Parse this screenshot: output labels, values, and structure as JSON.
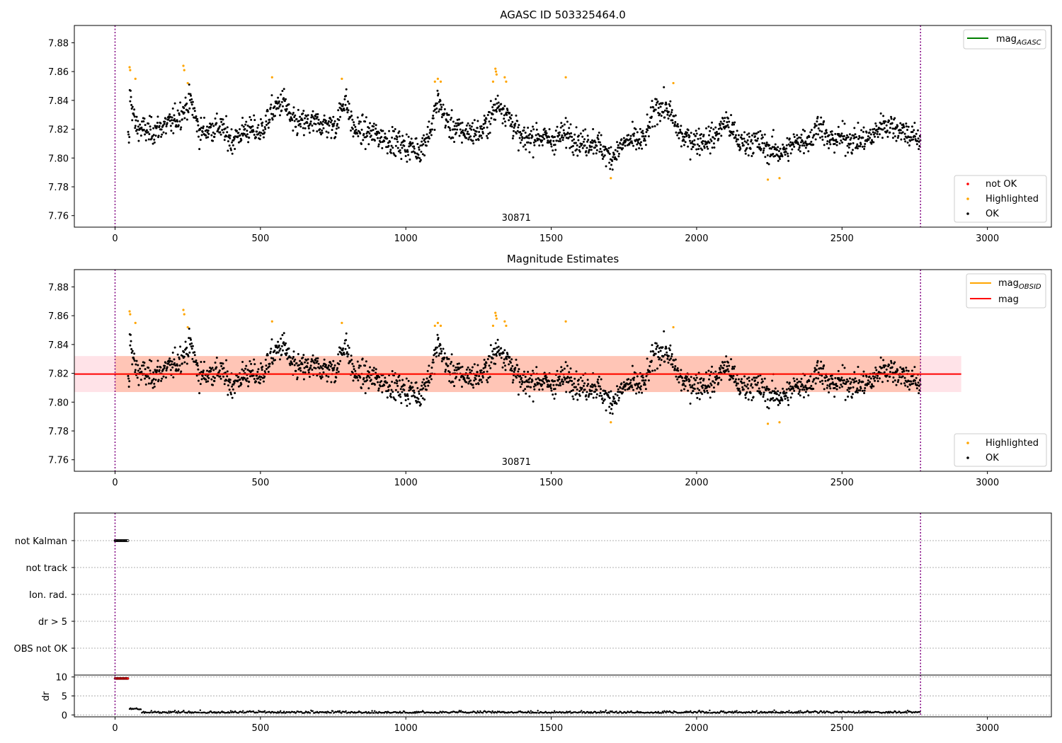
{
  "colors": {
    "ok": "#000000",
    "highlighted": "#ffa500",
    "not_ok": "#ff0000",
    "mag_agasc": "#008000",
    "mag_obsid": "#ffa500",
    "mag": "#ff0000",
    "band_obsid": "#ffa07a",
    "band_mag": "#ffc0cb",
    "obs_boundary": "#800080",
    "grid": "#b0b0b0"
  },
  "chart_data": [
    {
      "type": "scatter",
      "title": "AGASC ID 503325464.0",
      "xlim": [
        -140,
        3220
      ],
      "ylim": [
        7.752,
        7.892
      ],
      "x_ticks": [
        0,
        500,
        1000,
        1500,
        2000,
        2500,
        3000
      ],
      "y_ticks": [
        7.76,
        7.78,
        7.8,
        7.82,
        7.84,
        7.86,
        7.88
      ],
      "obs_boundaries": [
        0,
        2770
      ],
      "obs_label": {
        "text": "30871",
        "x": 1380
      },
      "mean": 7.819,
      "legend_lines": [
        {
          "label": "mag",
          "sub": "AGASC",
          "color": "#008000"
        }
      ],
      "legend_points": [
        {
          "label": "not OK",
          "color": "#ff0000"
        },
        {
          "label": "Highlighted",
          "color": "#ffa500"
        },
        {
          "label": "OK",
          "color": "#000000"
        }
      ],
      "highlighted_points": [
        [
          50,
          7.863
        ],
        [
          52,
          7.861
        ],
        [
          70,
          7.855
        ],
        [
          235,
          7.864
        ],
        [
          238,
          7.861
        ],
        [
          250,
          7.852
        ],
        [
          540,
          7.856
        ],
        [
          780,
          7.855
        ],
        [
          1100,
          7.853
        ],
        [
          1110,
          7.855
        ],
        [
          1120,
          7.853
        ],
        [
          1300,
          7.853
        ],
        [
          1308,
          7.862
        ],
        [
          1310,
          7.86
        ],
        [
          1312,
          7.858
        ],
        [
          1340,
          7.856
        ],
        [
          1345,
          7.853
        ],
        [
          1550,
          7.856
        ],
        [
          1705,
          7.786
        ],
        [
          1920,
          7.852
        ],
        [
          2245,
          7.785
        ],
        [
          2285,
          7.786
        ]
      ]
    },
    {
      "type": "scatter",
      "title": "Magnitude Estimates",
      "xlim": [
        -140,
        3220
      ],
      "ylim": [
        7.752,
        7.892
      ],
      "x_ticks": [
        0,
        500,
        1000,
        1500,
        2000,
        2500,
        3000
      ],
      "y_ticks": [
        7.76,
        7.78,
        7.8,
        7.82,
        7.84,
        7.86,
        7.88
      ],
      "obs_boundaries": [
        0,
        2770
      ],
      "obs_label": {
        "text": "30871",
        "x": 1380
      },
      "mag_obsid": {
        "value": 7.8195,
        "x": [
          0,
          2770
        ],
        "band": [
          7.807,
          7.832
        ]
      },
      "mag": {
        "value": 7.8195,
        "x": [
          -140,
          2910
        ],
        "band": [
          7.807,
          7.832
        ]
      },
      "legend_lines": [
        {
          "label": "mag",
          "sub": "OBSID",
          "color": "#ffa500"
        },
        {
          "label": "mag",
          "sub": "",
          "color": "#ff0000"
        }
      ],
      "legend_points": [
        {
          "label": "Highlighted",
          "color": "#ffa500"
        },
        {
          "label": "OK",
          "color": "#000000"
        }
      ]
    },
    {
      "type": "scatter",
      "title": "",
      "xlim": [
        -140,
        3220
      ],
      "categories": [
        "not Kalman",
        "not track",
        "Ion. rad.",
        "dr > 5",
        "OBS not OK"
      ],
      "flags": {
        "not Kalman": [
          0,
          45
        ]
      },
      "obs_boundaries": [
        0,
        2770
      ]
    },
    {
      "type": "scatter",
      "title": "",
      "ylabel": "dr",
      "xlim": [
        -140,
        3220
      ],
      "ylim": [
        -0.5,
        10.5
      ],
      "x_ticks": [
        0,
        500,
        1000,
        1500,
        2000,
        2500,
        3000
      ],
      "y_ticks": [
        0,
        5,
        10
      ],
      "high_dr": {
        "value": 9.6,
        "x": [
          0,
          45
        ]
      },
      "typical_dr": 0.5,
      "obs_boundaries": [
        0,
        2770
      ]
    }
  ]
}
